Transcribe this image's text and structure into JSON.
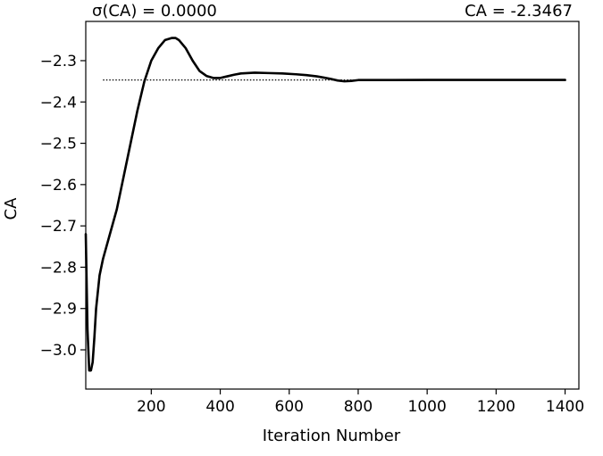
{
  "chart_data": {
    "type": "line",
    "title_left": "σ(CA) = 0.0000",
    "title_right": "CA = -2.3467",
    "xlabel": "Iteration Number",
    "ylabel": "CA",
    "xlim": [
      10,
      1440
    ],
    "ylim": [
      -3.095,
      -2.205
    ],
    "xticks": [
      200,
      400,
      600,
      800,
      1000,
      1200,
      1400
    ],
    "xtick_labels": [
      "200",
      "400",
      "600",
      "800",
      "1000",
      "1200",
      "1400"
    ],
    "yticks": [
      -3.0,
      -2.9,
      -2.8,
      -2.7,
      -2.6,
      -2.5,
      -2.4,
      -2.3
    ],
    "ytick_labels": [
      "−3.0",
      "−2.9",
      "−2.8",
      "−2.7",
      "−2.6",
      "−2.5",
      "−2.4",
      "−2.3"
    ],
    "reference_line": {
      "y": -2.3467,
      "style": "dotted",
      "x_range": [
        60,
        1400
      ]
    },
    "grid": false,
    "series": [
      {
        "color": "#000000",
        "x": [
          10,
          15,
          20,
          25,
          30,
          35,
          40,
          50,
          60,
          80,
          100,
          120,
          140,
          160,
          180,
          200,
          220,
          240,
          260,
          270,
          280,
          300,
          320,
          340,
          360,
          380,
          400,
          420,
          440,
          460,
          500,
          540,
          580,
          620,
          650,
          680,
          700,
          720,
          740,
          760,
          780,
          800,
          850,
          900,
          1000,
          1100,
          1200,
          1300,
          1400
        ],
        "y": [
          -2.72,
          -2.95,
          -3.05,
          -3.05,
          -3.03,
          -2.97,
          -2.9,
          -2.82,
          -2.78,
          -2.72,
          -2.66,
          -2.58,
          -2.5,
          -2.42,
          -2.35,
          -2.3,
          -2.27,
          -2.25,
          -2.245,
          -2.245,
          -2.25,
          -2.27,
          -2.3,
          -2.325,
          -2.337,
          -2.342,
          -2.342,
          -2.338,
          -2.334,
          -2.331,
          -2.329,
          -2.33,
          -2.331,
          -2.333,
          -2.335,
          -2.338,
          -2.341,
          -2.344,
          -2.348,
          -2.35,
          -2.349,
          -2.347,
          -2.347,
          -2.3468,
          -2.3467,
          -2.3467,
          -2.3467,
          -2.3467,
          -2.3467
        ]
      }
    ]
  }
}
